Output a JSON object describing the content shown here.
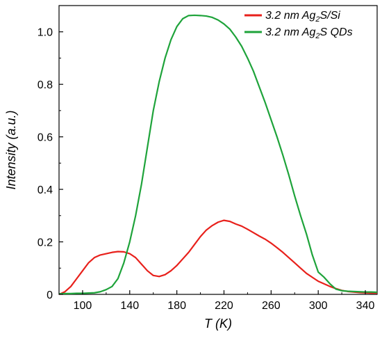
{
  "chart_data": {
    "type": "line",
    "title": "",
    "xlabel": "T (K)",
    "ylabel": "Intensity (a.u.)",
    "xlim": [
      80,
      350
    ],
    "ylim": [
      0,
      1.1
    ],
    "grid": false,
    "legend_position": "top-right",
    "x_ticks": [
      100,
      140,
      180,
      220,
      260,
      300,
      340
    ],
    "y_ticks": [
      0,
      0.2,
      0.4,
      0.6,
      0.8,
      1.0
    ],
    "x_tick_labels": [
      "100",
      "140",
      "180",
      "220",
      "260",
      "300",
      "340"
    ],
    "y_tick_labels": [
      "0",
      "0.2",
      "0.4",
      "0.6",
      "0.8",
      "1.0"
    ],
    "series": [
      {
        "name": "3.2 nm Ag2S/Si",
        "legend_parts": [
          "3.2 nm Ag",
          "2",
          "S/Si"
        ],
        "color": "#e8201b",
        "x": [
          80,
          85,
          90,
          95,
          100,
          105,
          110,
          115,
          120,
          125,
          130,
          135,
          140,
          145,
          150,
          155,
          160,
          165,
          170,
          175,
          180,
          185,
          190,
          195,
          200,
          205,
          210,
          215,
          220,
          225,
          230,
          235,
          240,
          245,
          250,
          255,
          260,
          265,
          270,
          275,
          280,
          285,
          290,
          295,
          300,
          305,
          310,
          315,
          320,
          325,
          330,
          335,
          340,
          345,
          350
        ],
        "y": [
          0.0,
          0.01,
          0.03,
          0.06,
          0.09,
          0.12,
          0.14,
          0.15,
          0.155,
          0.16,
          0.163,
          0.162,
          0.155,
          0.14,
          0.115,
          0.09,
          0.072,
          0.068,
          0.075,
          0.09,
          0.11,
          0.135,
          0.16,
          0.19,
          0.22,
          0.245,
          0.262,
          0.275,
          0.282,
          0.278,
          0.268,
          0.26,
          0.248,
          0.235,
          0.222,
          0.21,
          0.195,
          0.178,
          0.16,
          0.14,
          0.12,
          0.1,
          0.08,
          0.065,
          0.05,
          0.04,
          0.03,
          0.022,
          0.015,
          0.011,
          0.009,
          0.007,
          0.006,
          0.005,
          0.005
        ]
      },
      {
        "name": "3.2 nm Ag2S QDs",
        "legend_parts": [
          "3.2 nm Ag",
          "2",
          "S QDs"
        ],
        "color": "#1ea33a",
        "x": [
          80,
          85,
          90,
          95,
          100,
          105,
          110,
          115,
          120,
          125,
          130,
          135,
          140,
          145,
          150,
          155,
          160,
          165,
          170,
          175,
          180,
          185,
          190,
          195,
          200,
          205,
          210,
          215,
          220,
          225,
          230,
          235,
          240,
          245,
          250,
          255,
          260,
          265,
          270,
          275,
          280,
          285,
          290,
          295,
          300,
          305,
          310,
          315,
          320,
          325,
          330,
          335,
          340,
          345,
          350
        ],
        "y": [
          0.002,
          0.003,
          0.003,
          0.004,
          0.004,
          0.005,
          0.006,
          0.01,
          0.018,
          0.03,
          0.06,
          0.12,
          0.2,
          0.3,
          0.42,
          0.56,
          0.7,
          0.81,
          0.9,
          0.97,
          1.02,
          1.05,
          1.062,
          1.063,
          1.062,
          1.06,
          1.055,
          1.045,
          1.03,
          1.01,
          0.98,
          0.945,
          0.9,
          0.85,
          0.79,
          0.73,
          0.665,
          0.6,
          0.53,
          0.455,
          0.375,
          0.3,
          0.23,
          0.15,
          0.085,
          0.065,
          0.04,
          0.02,
          0.014,
          0.012,
          0.011,
          0.01,
          0.009,
          0.009,
          0.008
        ]
      }
    ]
  }
}
